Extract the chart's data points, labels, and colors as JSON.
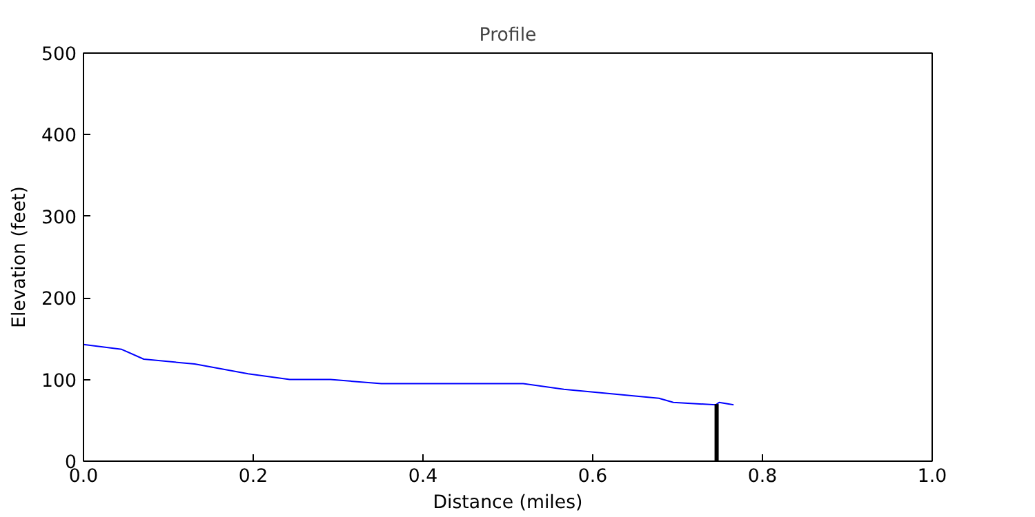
{
  "chart_data": {
    "type": "line",
    "title": "Profile",
    "xlabel": "Distance (miles)",
    "ylabel": "Elevation (feet)",
    "xlim": [
      0,
      1
    ],
    "ylim": [
      0,
      500
    ],
    "xticks": [
      {
        "value": 0,
        "label": "0.0"
      },
      0.2,
      0.4,
      0.6,
      0.8,
      {
        "value": 1,
        "label": "1.0"
      }
    ],
    "yticks": [
      0,
      100,
      200,
      300,
      400,
      500
    ],
    "grid": false,
    "series": [
      {
        "color": "#0000ff",
        "x": [
          0,
          0.045,
          0.071,
          0.131,
          0.194,
          0.243,
          0.291,
          0.351,
          0.518,
          0.566,
          0.607,
          0.678,
          0.695,
          0.745,
          0.749,
          0.766
        ],
        "values": [
          143,
          137,
          125,
          119,
          107,
          100,
          100,
          95,
          95,
          88,
          84,
          77,
          72,
          69,
          72,
          69
        ]
      },
      {
        "color": "#000000",
        "x": [
          0.746,
          0.746
        ],
        "values": [
          0,
          70
        ]
      }
    ]
  }
}
